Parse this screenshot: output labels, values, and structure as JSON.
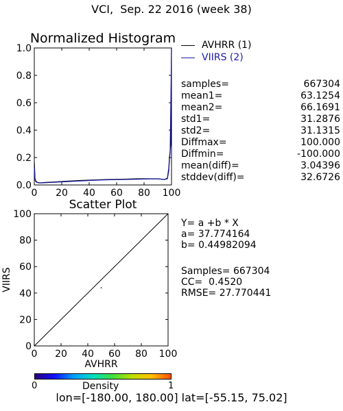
{
  "header": {
    "title": "VCI,  Sep. 22 2016 (week 38)"
  },
  "histogram": {
    "title": "Normalized Histogram",
    "legend": [
      {
        "label": "AVHRR (1)",
        "color": "#000000"
      },
      {
        "label": "VIIRS (2)",
        "color": "#1a1aa6"
      }
    ],
    "stats": [
      {
        "label": "samples=",
        "value": "667304"
      },
      {
        "label": "mean1=",
        "value": "63.1254"
      },
      {
        "label": "mean2=",
        "value": "66.1691"
      },
      {
        "label": "std1=",
        "value": "31.2876"
      },
      {
        "label": "std2=",
        "value": "31.1315"
      },
      {
        "label": "Diffmax=",
        "value": "100.000"
      },
      {
        "label": "Diffmin=",
        "value": "-100.000"
      },
      {
        "label": "mean(diff)=",
        "value": "3.04396"
      },
      {
        "label": "stddev(diff)=",
        "value": "32.6726"
      }
    ]
  },
  "scatter": {
    "title": "Scatter Plot",
    "fit": [
      "Y= a +b * X",
      "a= 37.774164",
      "b= 0.44982094",
      "",
      "Samples= 667304",
      "CC=  0.4520",
      "RMSE= 27.770441"
    ]
  },
  "colorbar": {
    "min_label": "0",
    "max_label": "1",
    "title": "Density",
    "colors": [
      "#2a0080",
      "#1010ff",
      "#00a0ff",
      "#00e0c0",
      "#40e040",
      "#c0e000",
      "#ffc000",
      "#ff5000"
    ]
  },
  "footer": {
    "text": "lon=[-180.00, 180.00] lat=[-55.15, 75.02]"
  },
  "chart_data": [
    {
      "type": "line",
      "title": "Normalized Histogram",
      "xlim": [
        0,
        100
      ],
      "ylim": [
        0.0,
        1.0
      ],
      "xticks": [
        "0",
        "20",
        "40",
        "60",
        "80",
        "100"
      ],
      "yticks": [
        "0.0",
        "0.2",
        "0.4",
        "0.6",
        "0.8",
        "1.0"
      ],
      "legend_position": "right",
      "series": [
        {
          "name": "AVHRR (1)",
          "color": "#000000",
          "x": [
            0,
            0.5,
            1,
            2,
            4,
            8,
            15,
            25,
            35,
            45,
            55,
            65,
            75,
            85,
            90,
            95,
            97,
            98,
            98.5,
            99,
            99.5,
            100
          ],
          "y": [
            0.17,
            0.05,
            0.03,
            0.02,
            0.015,
            0.018,
            0.022,
            0.028,
            0.033,
            0.037,
            0.04,
            0.042,
            0.045,
            0.045,
            0.045,
            0.04,
            0.05,
            0.12,
            0.2,
            0.25,
            0.3,
            1.0
          ]
        },
        {
          "name": "VIIRS (2)",
          "color": "#1a1aa6",
          "x": [
            0,
            0.5,
            1,
            2,
            4,
            8,
            15,
            25,
            35,
            45,
            55,
            65,
            75,
            85,
            90,
            95,
            97,
            98,
            98.5,
            99,
            99.5,
            100
          ],
          "y": [
            0.13,
            0.04,
            0.025,
            0.018,
            0.014,
            0.016,
            0.02,
            0.025,
            0.03,
            0.035,
            0.038,
            0.04,
            0.042,
            0.044,
            0.044,
            0.04,
            0.045,
            0.1,
            0.18,
            0.24,
            0.6,
            1.0
          ]
        }
      ]
    },
    {
      "type": "scatter",
      "title": "Scatter Plot",
      "xlabel": "AVHRR",
      "ylabel": "VIIRS",
      "xlim": [
        0,
        100
      ],
      "ylim": [
        0,
        100
      ],
      "xticks": [
        "0",
        "20",
        "40",
        "60",
        "80",
        "100"
      ],
      "yticks": [
        "0",
        "20",
        "40",
        "60",
        "80",
        "100"
      ],
      "lines": [
        {
          "name": "1:1",
          "x": [
            0,
            100
          ],
          "y": [
            0,
            100
          ]
        }
      ],
      "points": [
        {
          "x": 50,
          "y": 44
        }
      ]
    }
  ]
}
